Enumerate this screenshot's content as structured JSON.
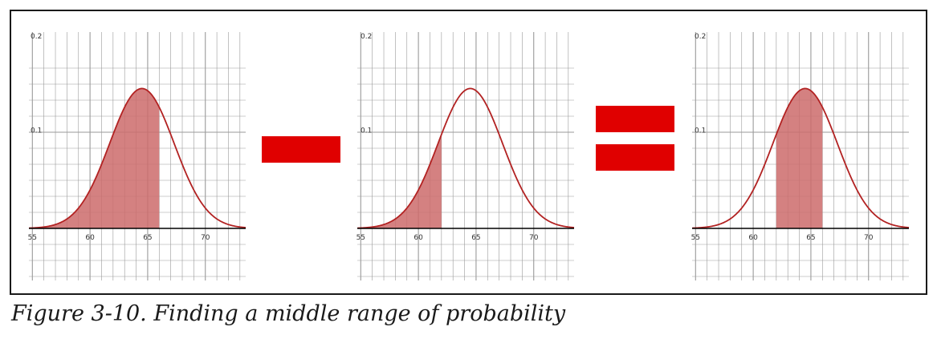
{
  "caption": "Figure 3-10. Finding a middle range of probability",
  "colors": {
    "curve": "#b22222",
    "fill": "#cd6b6b",
    "operator": "#e00000",
    "grid": "#9a9a9a",
    "axis": "#000000"
  },
  "operators": [
    "minus",
    "equals"
  ],
  "chart_data": [
    {
      "type": "area",
      "distribution": "normal",
      "mean": 64.5,
      "sd": 2.8,
      "xlim": [
        54.7,
        73.5
      ],
      "ylim": [
        -0.04,
        0.2
      ],
      "xticks": [
        "55",
        "60",
        "65",
        "70"
      ],
      "yticks": [
        "0.1",
        "0.2"
      ],
      "shaded_range": [
        54.7,
        66
      ]
    },
    {
      "type": "area",
      "distribution": "normal",
      "mean": 64.5,
      "sd": 2.8,
      "xlim": [
        54.7,
        73.5
      ],
      "ylim": [
        -0.04,
        0.2
      ],
      "xticks": [
        "55",
        "60",
        "65",
        "70"
      ],
      "yticks": [
        "0.1",
        "0.2"
      ],
      "shaded_range": [
        54.7,
        62
      ]
    },
    {
      "type": "area",
      "distribution": "normal",
      "mean": 64.5,
      "sd": 2.8,
      "xlim": [
        54.7,
        73.5
      ],
      "ylim": [
        -0.04,
        0.2
      ],
      "xticks": [
        "55",
        "60",
        "65",
        "70"
      ],
      "yticks": [
        "0.1",
        "0.2"
      ],
      "shaded_range": [
        62,
        66
      ]
    }
  ]
}
